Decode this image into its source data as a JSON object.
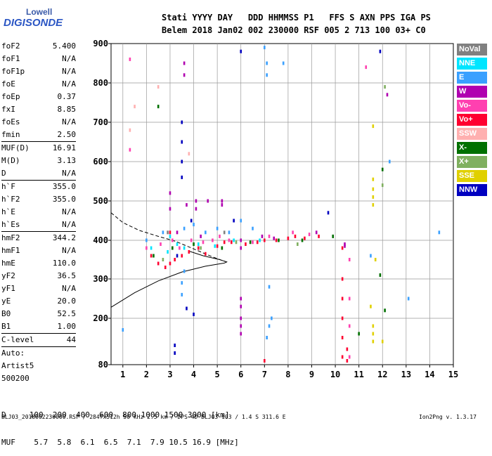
{
  "logo": {
    "line1": "Lowell",
    "line2": "DIGISONDE"
  },
  "header": {
    "labels": "Stati YYYY DAY   DDD HHMMSS P1   FFS S AXN PPS IGA PS",
    "values": "Belem 2018 Jan02 002 230000 RSF 005 2 713 100 03+ C0"
  },
  "params": [
    {
      "name": "foF2",
      "value": "5.400"
    },
    {
      "name": "foF1",
      "value": "N/A"
    },
    {
      "name": "foF1p",
      "value": "N/A"
    },
    {
      "name": "foE",
      "value": "N/A"
    },
    {
      "name": "foEp",
      "value": "0.37"
    },
    {
      "name": "fxI",
      "value": "8.85"
    },
    {
      "name": "foEs",
      "value": "N/A"
    },
    {
      "name": "fmin",
      "value": "2.50",
      "sep": true
    },
    {
      "name": "MUF(D)",
      "value": "16.91"
    },
    {
      "name": "M(D)",
      "value": "3.13"
    },
    {
      "name": "D",
      "value": "N/A",
      "sep": true
    },
    {
      "name": "h`F",
      "value": "355.0"
    },
    {
      "name": "h`F2",
      "value": "355.0"
    },
    {
      "name": "h`E",
      "value": "N/A"
    },
    {
      "name": "h`Es",
      "value": "N/A",
      "sep": true
    },
    {
      "name": "hmF2",
      "value": "344.2"
    },
    {
      "name": "hmF1",
      "value": "N/A"
    },
    {
      "name": "hmE",
      "value": "110.0"
    },
    {
      "name": "yF2",
      "value": "36.5"
    },
    {
      "name": "yF1",
      "value": "N/A"
    },
    {
      "name": "yE",
      "value": "20.0"
    },
    {
      "name": "B0",
      "value": "52.5"
    },
    {
      "name": "B1",
      "value": "1.00",
      "sep": true
    },
    {
      "name": "C-level",
      "value": "44",
      "sep": true
    },
    {
      "name": "Auto:",
      "value": ""
    },
    {
      "name": "Artist5",
      "value": ""
    },
    {
      "name": "500200",
      "value": ""
    }
  ],
  "legend": [
    {
      "label": "NoVal",
      "bg": "#808080",
      "fg": "#ffffff"
    },
    {
      "label": "NNE",
      "bg": "#00e5ff",
      "fg": "#ffffff"
    },
    {
      "label": "E",
      "bg": "#3aa0ff",
      "fg": "#ffffff"
    },
    {
      "label": "W",
      "bg": "#b000b0",
      "fg": "#ffffff"
    },
    {
      "label": "Vo-",
      "bg": "#ff40b0",
      "fg": "#ffffff"
    },
    {
      "label": "Vo+",
      "bg": "#ff0030",
      "fg": "#ffffff"
    },
    {
      "label": "SSW",
      "bg": "#ffb0b0",
      "fg": "#ffffff"
    },
    {
      "label": "X-",
      "bg": "#007000",
      "fg": "#ffffff"
    },
    {
      "label": "X+",
      "bg": "#80b060",
      "fg": "#ffffff"
    },
    {
      "label": "SSE",
      "bg": "#e0d000",
      "fg": "#ffffff"
    },
    {
      "label": "NNW",
      "bg": "#0000c0",
      "fg": "#ffffff"
    }
  ],
  "scale": {
    "row1": "D     100  200  400  600  800 1000 1500 3000 [km]",
    "row2": "MUF    5.7  5.8  6.1  6.5  7.1  7.9 10.5 16.9 [MHz]"
  },
  "footer": {
    "left": "BLJ03_2018002230000.RSF / 284fx512h 50 kHz 2.5 km / DPS-4D BLJ03 103 / 1.4 S 311.6 E",
    "right": "Ion2Png v. 1.3.17"
  },
  "chart_data": {
    "type": "scatter",
    "title": "",
    "xlabel": "",
    "ylabel": "",
    "xlim": [
      0.5,
      15
    ],
    "ylim": [
      80,
      900
    ],
    "x_ticks": [
      1,
      2,
      3,
      4,
      5,
      6,
      7,
      8,
      9,
      10,
      11,
      12,
      13,
      14,
      15
    ],
    "y_ticks": [
      80,
      200,
      300,
      400,
      500,
      600,
      700,
      800,
      900
    ],
    "grid": true,
    "y_scale": "ionogram (non-linear)",
    "series": [
      {
        "name": "W",
        "color": "#b000b0",
        "points": [
          [
            3.0,
            520
          ],
          [
            3.0,
            480
          ],
          [
            3.6,
            850
          ],
          [
            3.6,
            820
          ],
          [
            3.7,
            490
          ],
          [
            4.1,
            500
          ],
          [
            4.1,
            480
          ],
          [
            4.6,
            500
          ],
          [
            5.2,
            490
          ],
          [
            5.2,
            500
          ],
          [
            6.0,
            400
          ],
          [
            6.0,
            380
          ],
          [
            6.0,
            250
          ],
          [
            6.0,
            230
          ],
          [
            6.0,
            200
          ],
          [
            6.0,
            180
          ],
          [
            6.0,
            160
          ],
          [
            7.4,
            405
          ],
          [
            9.2,
            420
          ],
          [
            10.4,
            385
          ],
          [
            10.4,
            390
          ],
          [
            12.2,
            770
          ],
          [
            3.3,
            420
          ],
          [
            4.3,
            410
          ],
          [
            6.9,
            410
          ]
        ]
      },
      {
        "name": "Vo+",
        "color": "#ff0030",
        "points": [
          [
            2.2,
            360
          ],
          [
            2.5,
            340
          ],
          [
            2.8,
            330
          ],
          [
            3.0,
            340
          ],
          [
            3.2,
            350
          ],
          [
            3.5,
            360
          ],
          [
            3.8,
            370
          ],
          [
            4.2,
            380
          ],
          [
            4.5,
            365
          ],
          [
            5.0,
            385
          ],
          [
            5.3,
            395
          ],
          [
            5.6,
            395
          ],
          [
            6.2,
            390
          ],
          [
            6.7,
            395
          ],
          [
            7.0,
            400
          ],
          [
            7.5,
            400
          ],
          [
            8.0,
            405
          ],
          [
            8.3,
            410
          ],
          [
            8.7,
            405
          ],
          [
            9.3,
            410
          ],
          [
            10.3,
            380
          ],
          [
            10.3,
            300
          ],
          [
            10.3,
            250
          ],
          [
            10.3,
            200
          ],
          [
            10.3,
            150
          ],
          [
            10.3,
            100
          ],
          [
            10.5,
            90
          ],
          [
            10.5,
            120
          ],
          [
            7.0,
            90
          ],
          [
            3.0,
            420
          ]
        ]
      },
      {
        "name": "Vo-",
        "color": "#ff40b0",
        "points": [
          [
            2.0,
            380
          ],
          [
            2.6,
            390
          ],
          [
            3.1,
            400
          ],
          [
            3.4,
            380
          ],
          [
            3.9,
            400
          ],
          [
            4.4,
            395
          ],
          [
            4.8,
            400
          ],
          [
            5.1,
            410
          ],
          [
            5.5,
            400
          ],
          [
            6.5,
            395
          ],
          [
            7.2,
            410
          ],
          [
            8.2,
            420
          ],
          [
            8.9,
            415
          ],
          [
            10.6,
            350
          ],
          [
            10.6,
            250
          ],
          [
            10.6,
            180
          ],
          [
            10.6,
            100
          ],
          [
            11.3,
            840
          ],
          [
            1.3,
            860
          ],
          [
            1.3,
            630
          ]
        ]
      },
      {
        "name": "E",
        "color": "#3aa0ff",
        "points": [
          [
            2.0,
            400
          ],
          [
            2.7,
            420
          ],
          [
            3.6,
            430
          ],
          [
            4.0,
            440
          ],
          [
            4.5,
            420
          ],
          [
            5.0,
            430
          ],
          [
            5.5,
            420
          ],
          [
            6.0,
            450
          ],
          [
            6.5,
            430
          ],
          [
            7.0,
            890
          ],
          [
            7.1,
            850
          ],
          [
            7.1,
            820
          ],
          [
            7.3,
            200
          ],
          [
            7.2,
            180
          ],
          [
            7.1,
            150
          ],
          [
            7.2,
            280
          ],
          [
            7.8,
            850
          ],
          [
            3.6,
            320
          ],
          [
            3.5,
            290
          ],
          [
            3.5,
            260
          ],
          [
            12.3,
            600
          ],
          [
            13.1,
            250
          ],
          [
            14.4,
            420
          ],
          [
            1.0,
            170
          ],
          [
            11.5,
            360
          ]
        ]
      },
      {
        "name": "NNE",
        "color": "#00e5ff",
        "points": [
          [
            2.2,
            380
          ],
          [
            2.9,
            370
          ],
          [
            3.3,
            390
          ],
          [
            4.2,
            390
          ],
          [
            4.9,
            385
          ],
          [
            5.7,
            400
          ],
          [
            6.8,
            400
          ],
          [
            3.0,
            410
          ],
          [
            3.6,
            380
          ]
        ]
      },
      {
        "name": "NNW",
        "color": "#0000c0",
        "points": [
          [
            3.5,
            700
          ],
          [
            3.5,
            650
          ],
          [
            3.5,
            600
          ],
          [
            3.5,
            560
          ],
          [
            3.9,
            450
          ],
          [
            3.2,
            130
          ],
          [
            3.2,
            110
          ],
          [
            3.7,
            225
          ],
          [
            4.0,
            210
          ],
          [
            5.7,
            450
          ],
          [
            6.0,
            880
          ],
          [
            9.7,
            470
          ],
          [
            11.9,
            880
          ],
          [
            3.3,
            360
          ]
        ]
      },
      {
        "name": "X-",
        "color": "#007000",
        "points": [
          [
            2.3,
            360
          ],
          [
            3.1,
            380
          ],
          [
            4.0,
            390
          ],
          [
            5.2,
            380
          ],
          [
            6.4,
            395
          ],
          [
            7.6,
            400
          ],
          [
            8.6,
            400
          ],
          [
            9.9,
            410
          ],
          [
            11.9,
            310
          ],
          [
            12.1,
            220
          ],
          [
            12.0,
            580
          ],
          [
            11.0,
            160
          ],
          [
            2.5,
            740
          ]
        ]
      },
      {
        "name": "X+",
        "color": "#80b060",
        "points": [
          [
            2.7,
            350
          ],
          [
            4.3,
            380
          ],
          [
            5.8,
            395
          ],
          [
            8.4,
            390
          ],
          [
            12.0,
            540
          ],
          [
            12.1,
            790
          ]
        ]
      },
      {
        "name": "SSE",
        "color": "#e0d000",
        "points": [
          [
            11.6,
            555
          ],
          [
            11.6,
            530
          ],
          [
            11.6,
            510
          ],
          [
            11.6,
            490
          ],
          [
            11.6,
            690
          ],
          [
            11.7,
            350
          ],
          [
            11.5,
            230
          ],
          [
            11.6,
            180
          ],
          [
            11.6,
            160
          ],
          [
            11.6,
            140
          ],
          [
            12.0,
            140
          ]
        ]
      },
      {
        "name": "SSW",
        "color": "#ffb0b0",
        "points": [
          [
            1.5,
            740
          ],
          [
            1.3,
            680
          ],
          [
            2.5,
            790
          ],
          [
            3.8,
            620
          ]
        ]
      },
      {
        "name": "NoVal",
        "color": "#808080",
        "points": [
          [
            2.9,
            420
          ],
          [
            5.3,
            420
          ]
        ]
      }
    ],
    "traces": [
      {
        "name": "profile",
        "style": "solid",
        "points": [
          [
            0.5,
            228
          ],
          [
            1.5,
            265
          ],
          [
            2.5,
            295
          ],
          [
            3.5,
            318
          ],
          [
            4.5,
            333
          ],
          [
            5.3,
            341
          ],
          [
            5.4,
            344
          ],
          [
            5.1,
            350
          ],
          [
            4.4,
            360
          ],
          [
            3.8,
            372
          ]
        ]
      },
      {
        "name": "h'F",
        "style": "dashed",
        "points": [
          [
            0.5,
            470
          ],
          [
            1.0,
            445
          ],
          [
            1.7,
            425
          ],
          [
            2.5,
            410
          ],
          [
            3.2,
            398
          ],
          [
            3.8,
            383
          ],
          [
            4.3,
            370
          ],
          [
            4.8,
            357
          ],
          [
            5.2,
            348
          ],
          [
            5.4,
            344
          ]
        ]
      }
    ]
  }
}
